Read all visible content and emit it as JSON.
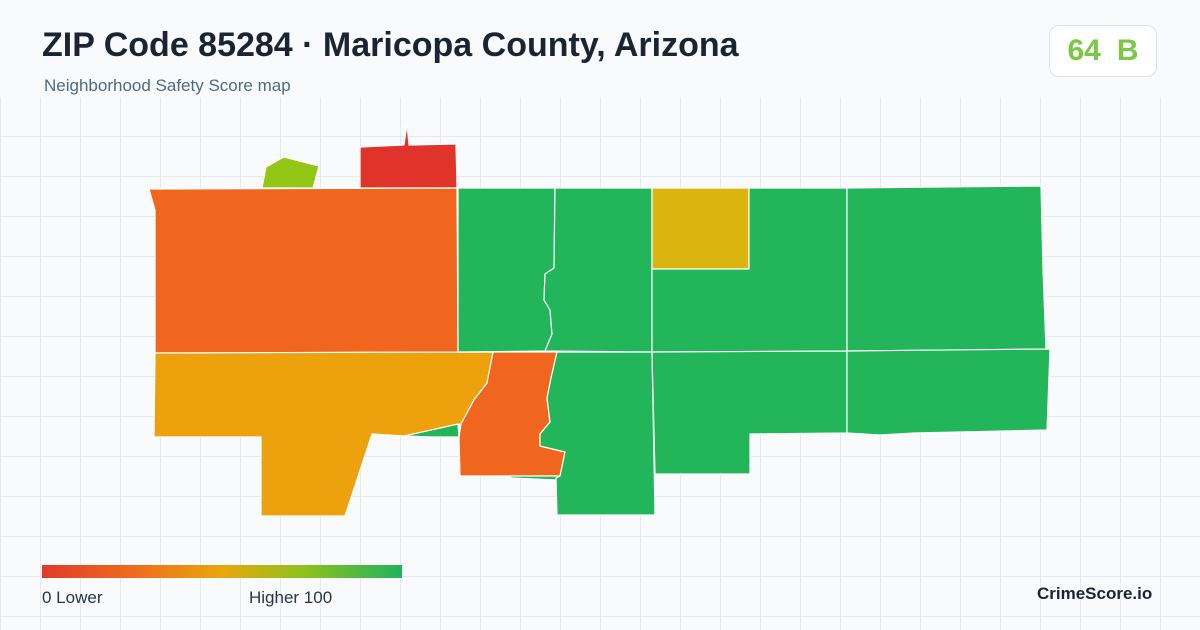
{
  "header": {
    "title": "ZIP Code 85284 · Maricopa County, Arizona",
    "subtitle": "Neighborhood Safety Score map"
  },
  "score": {
    "value": "64",
    "grade": "B",
    "color": "#7ac943"
  },
  "legend": {
    "low_label": "0  Lower",
    "high_label": "Higher  100",
    "min": 0,
    "max": 100,
    "gradient_colors": [
      "#e03a2b",
      "#f06a1e",
      "#e8a70c",
      "#8fc21c",
      "#22b25c"
    ]
  },
  "brand": "CrimeScore.io",
  "colors": {
    "red": "#e0342a",
    "orange": "#f0661e",
    "amber": "#eda20d",
    "yellow": "#dbb50f",
    "lime": "#94c616",
    "green": "#22b55a"
  }
}
